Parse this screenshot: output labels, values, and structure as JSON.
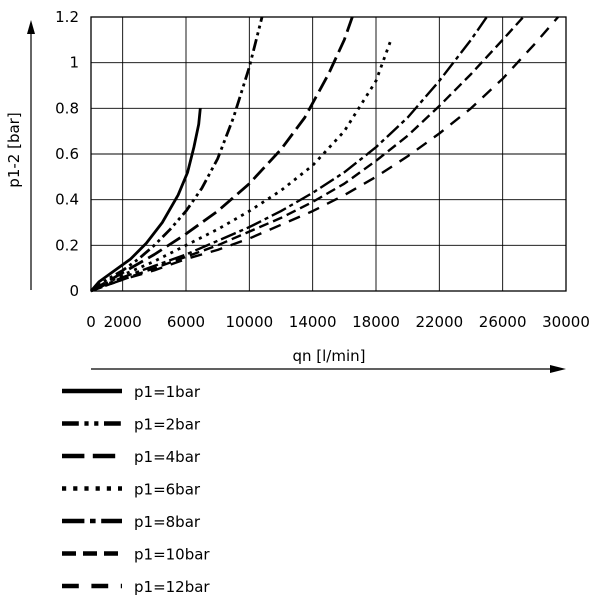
{
  "chart_data": {
    "type": "line",
    "xlabel": "qn [l/min]",
    "ylabel": "p1-2 [bar]",
    "xlim": [
      0,
      30000
    ],
    "ylim": [
      0,
      1.2
    ],
    "x_ticks": [
      0,
      2000,
      6000,
      10000,
      14000,
      18000,
      22000,
      26000,
      30000
    ],
    "x_tick_labels": [
      "0",
      "2000",
      "6000",
      "10000",
      "14000",
      "18000",
      "22000",
      "26000",
      "30000"
    ],
    "y_ticks": [
      0,
      0.2,
      0.4,
      0.6,
      0.8,
      1.0,
      1.2
    ],
    "y_tick_labels": [
      "0",
      "0.2",
      "0.4",
      "0.6",
      "0.8",
      "1",
      "1.2"
    ],
    "grid": true,
    "legend_position": "bottom-left",
    "series": [
      {
        "name": "p1=1bar",
        "dash": "solid",
        "points": [
          [
            0,
            0
          ],
          [
            500,
            0.04
          ],
          [
            1500,
            0.09
          ],
          [
            2500,
            0.14
          ],
          [
            3500,
            0.21
          ],
          [
            4500,
            0.3
          ],
          [
            5500,
            0.42
          ],
          [
            6100,
            0.52
          ],
          [
            6500,
            0.63
          ],
          [
            6800,
            0.73
          ],
          [
            6900,
            0.8
          ]
        ]
      },
      {
        "name": "p1=2bar",
        "dash": "dash-dot-dot",
        "points": [
          [
            0,
            0
          ],
          [
            1000,
            0.05
          ],
          [
            2000,
            0.09
          ],
          [
            3000,
            0.14
          ],
          [
            4000,
            0.2
          ],
          [
            5000,
            0.27
          ],
          [
            6000,
            0.35
          ],
          [
            7000,
            0.45
          ],
          [
            8000,
            0.58
          ],
          [
            9000,
            0.76
          ],
          [
            10000,
            0.98
          ],
          [
            10800,
            1.2
          ]
        ]
      },
      {
        "name": "p1=4bar",
        "dash": "long-dash",
        "points": [
          [
            0,
            0
          ],
          [
            2000,
            0.08
          ],
          [
            4000,
            0.16
          ],
          [
            6000,
            0.25
          ],
          [
            8000,
            0.35
          ],
          [
            10000,
            0.47
          ],
          [
            12000,
            0.62
          ],
          [
            13500,
            0.76
          ],
          [
            15000,
            0.95
          ],
          [
            16000,
            1.1
          ],
          [
            16500,
            1.2
          ]
        ]
      },
      {
        "name": "p1=6bar",
        "dash": "dotted",
        "points": [
          [
            0,
            0
          ],
          [
            2000,
            0.07
          ],
          [
            4000,
            0.13
          ],
          [
            6000,
            0.2
          ],
          [
            8000,
            0.27
          ],
          [
            10000,
            0.35
          ],
          [
            12000,
            0.44
          ],
          [
            14000,
            0.55
          ],
          [
            16000,
            0.7
          ],
          [
            18000,
            0.92
          ],
          [
            19000,
            1.11
          ]
        ]
      },
      {
        "name": "p1=8bar",
        "dash": "long-dash-dot",
        "points": [
          [
            0,
            0
          ],
          [
            2000,
            0.06
          ],
          [
            4000,
            0.11
          ],
          [
            6000,
            0.16
          ],
          [
            8000,
            0.22
          ],
          [
            10000,
            0.28
          ],
          [
            12000,
            0.35
          ],
          [
            14000,
            0.43
          ],
          [
            16000,
            0.52
          ],
          [
            18000,
            0.63
          ],
          [
            20000,
            0.76
          ],
          [
            22000,
            0.92
          ],
          [
            24000,
            1.1
          ],
          [
            25000,
            1.2
          ]
        ]
      },
      {
        "name": "p1=10bar",
        "dash": "medium-dash",
        "points": [
          [
            0,
            0
          ],
          [
            2000,
            0.05
          ],
          [
            4000,
            0.1
          ],
          [
            6000,
            0.15
          ],
          [
            8000,
            0.2
          ],
          [
            10000,
            0.26
          ],
          [
            12000,
            0.32
          ],
          [
            14000,
            0.39
          ],
          [
            16000,
            0.47
          ],
          [
            18000,
            0.57
          ],
          [
            20000,
            0.68
          ],
          [
            22000,
            0.81
          ],
          [
            24000,
            0.95
          ],
          [
            26000,
            1.1
          ],
          [
            27300,
            1.2
          ]
        ]
      },
      {
        "name": "p1=12bar",
        "dash": "spaced-dash",
        "points": [
          [
            0,
            0
          ],
          [
            2000,
            0.05
          ],
          [
            4000,
            0.09
          ],
          [
            6000,
            0.14
          ],
          [
            8000,
            0.18
          ],
          [
            10000,
            0.23
          ],
          [
            12000,
            0.29
          ],
          [
            14000,
            0.35
          ],
          [
            16000,
            0.42
          ],
          [
            18000,
            0.5
          ],
          [
            20000,
            0.59
          ],
          [
            22000,
            0.69
          ],
          [
            24000,
            0.8
          ],
          [
            26000,
            0.93
          ],
          [
            28000,
            1.08
          ],
          [
            29500,
            1.2
          ]
        ]
      }
    ]
  }
}
